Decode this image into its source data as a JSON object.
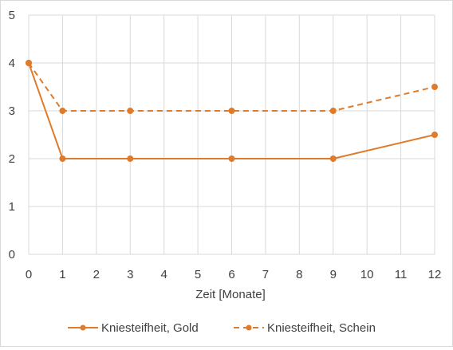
{
  "chart_data": {
    "type": "line",
    "title": "",
    "xlabel": "Zeit [Monate]",
    "ylabel": "",
    "xlim": [
      0,
      12
    ],
    "ylim": [
      0,
      5
    ],
    "x_ticks": [
      0,
      1,
      2,
      3,
      4,
      5,
      6,
      7,
      8,
      9,
      10,
      11,
      12
    ],
    "y_ticks": [
      0,
      1,
      2,
      3,
      4,
      5
    ],
    "grid": true,
    "legend_position": "bottom",
    "series": [
      {
        "name": "Kniesteifheit, Gold",
        "color": "#e07b2a",
        "line_style": "solid",
        "marker": "circle",
        "x": [
          0,
          1,
          3,
          6,
          9,
          12
        ],
        "y": [
          4,
          2,
          2,
          2,
          2,
          2.5
        ]
      },
      {
        "name": "Kniesteifheit, Schein",
        "color": "#e07b2a",
        "line_style": "dashed",
        "marker": "circle",
        "x": [
          0,
          1,
          3,
          6,
          9,
          12
        ],
        "y": [
          4,
          3,
          3,
          3,
          3,
          3.5
        ]
      }
    ]
  }
}
